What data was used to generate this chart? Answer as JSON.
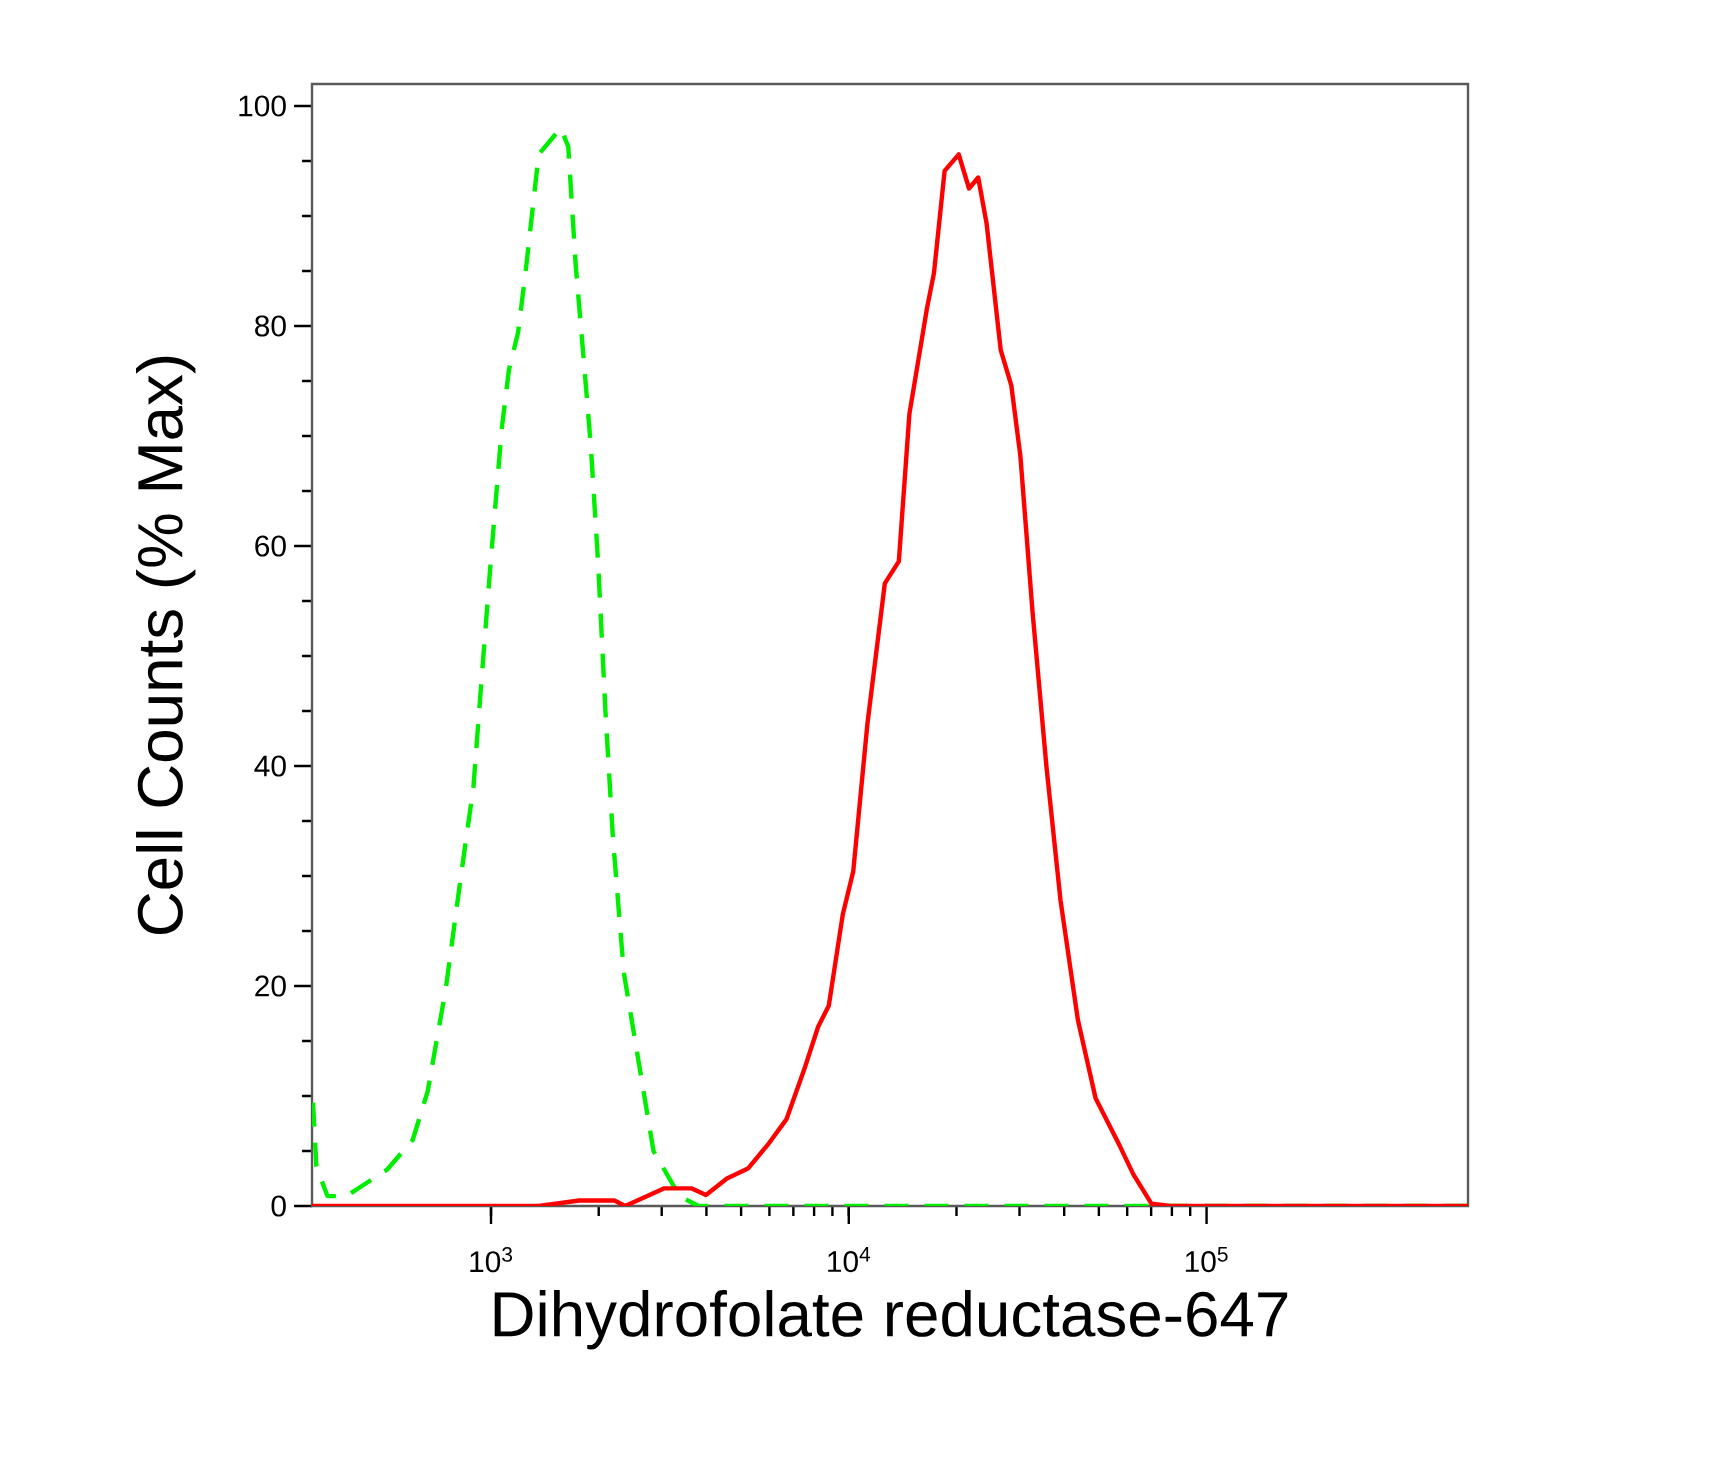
{
  "chart_data": {
    "type": "line",
    "xlabel": "Dihydrofolate reductase-647",
    "ylabel": "Cell Counts (% Max)",
    "log": "x",
    "xlim": [
      316,
      538000
    ],
    "ylim": [
      0,
      102
    ],
    "xticks": [
      {
        "value": 1000,
        "label": "10$^{3}$"
      },
      {
        "value": 10000,
        "label": "10$^{4}$"
      },
      {
        "value": 100000,
        "label": "10$^{5}$"
      }
    ],
    "yticks": [
      0,
      20,
      40,
      60,
      80,
      100
    ],
    "grid": false,
    "marker": "none",
    "series": [
      {
        "color": "#00ee00",
        "line_style": "dashed",
        "x": [
          318,
          325,
          349,
          394,
          512,
          604,
          665,
          748,
          824,
          893,
          936,
          997,
          1071,
          1122,
          1190,
          1248,
          1359,
          1567,
          1644,
          1725,
          1811,
          1900,
          1993,
          2089,
          2192,
          2351,
          2586,
          2845,
          3365,
          3800,
          538000
        ],
        "values": [
          9.4,
          3.6,
          0.9,
          0.9,
          3.3,
          6.0,
          10.4,
          19.8,
          30.0,
          38.1,
          46.9,
          58.4,
          70.6,
          76.0,
          79.4,
          84.8,
          95.6,
          98.0,
          96.3,
          85.5,
          77.4,
          69.2,
          58.4,
          44.9,
          33.4,
          21.2,
          13.1,
          5.0,
          0.9,
          0,
          0
        ]
      },
      {
        "color": "#ff0000",
        "line_style": "solid",
        "x": [
          316,
          1360,
          1766,
          2213,
          2371,
          3041,
          3641,
          3990,
          4564,
          5225,
          5980,
          6700,
          7505,
          8210,
          8790,
          9620,
          10290,
          11270,
          12610,
          13800,
          14770,
          16540,
          17300,
          18530,
          20290,
          21680,
          23000,
          24280,
          26590,
          28460,
          30170,
          32610,
          35670,
          39070,
          43690,
          48960,
          57330,
          62380,
          70200,
          79000,
          538000
        ],
        "values": [
          0,
          0,
          0.5,
          0.5,
          0,
          1.6,
          1.6,
          1.0,
          2.5,
          3.4,
          5.7,
          7.9,
          12.4,
          16.3,
          18.2,
          26.5,
          30.4,
          43.8,
          56.6,
          58.6,
          72.0,
          81.6,
          84.8,
          94.1,
          95.6,
          92.5,
          93.5,
          89.3,
          77.8,
          74.6,
          68.2,
          54.1,
          40.0,
          27.8,
          16.9,
          9.8,
          5.4,
          2.9,
          0.2,
          0,
          0
        ]
      }
    ]
  }
}
